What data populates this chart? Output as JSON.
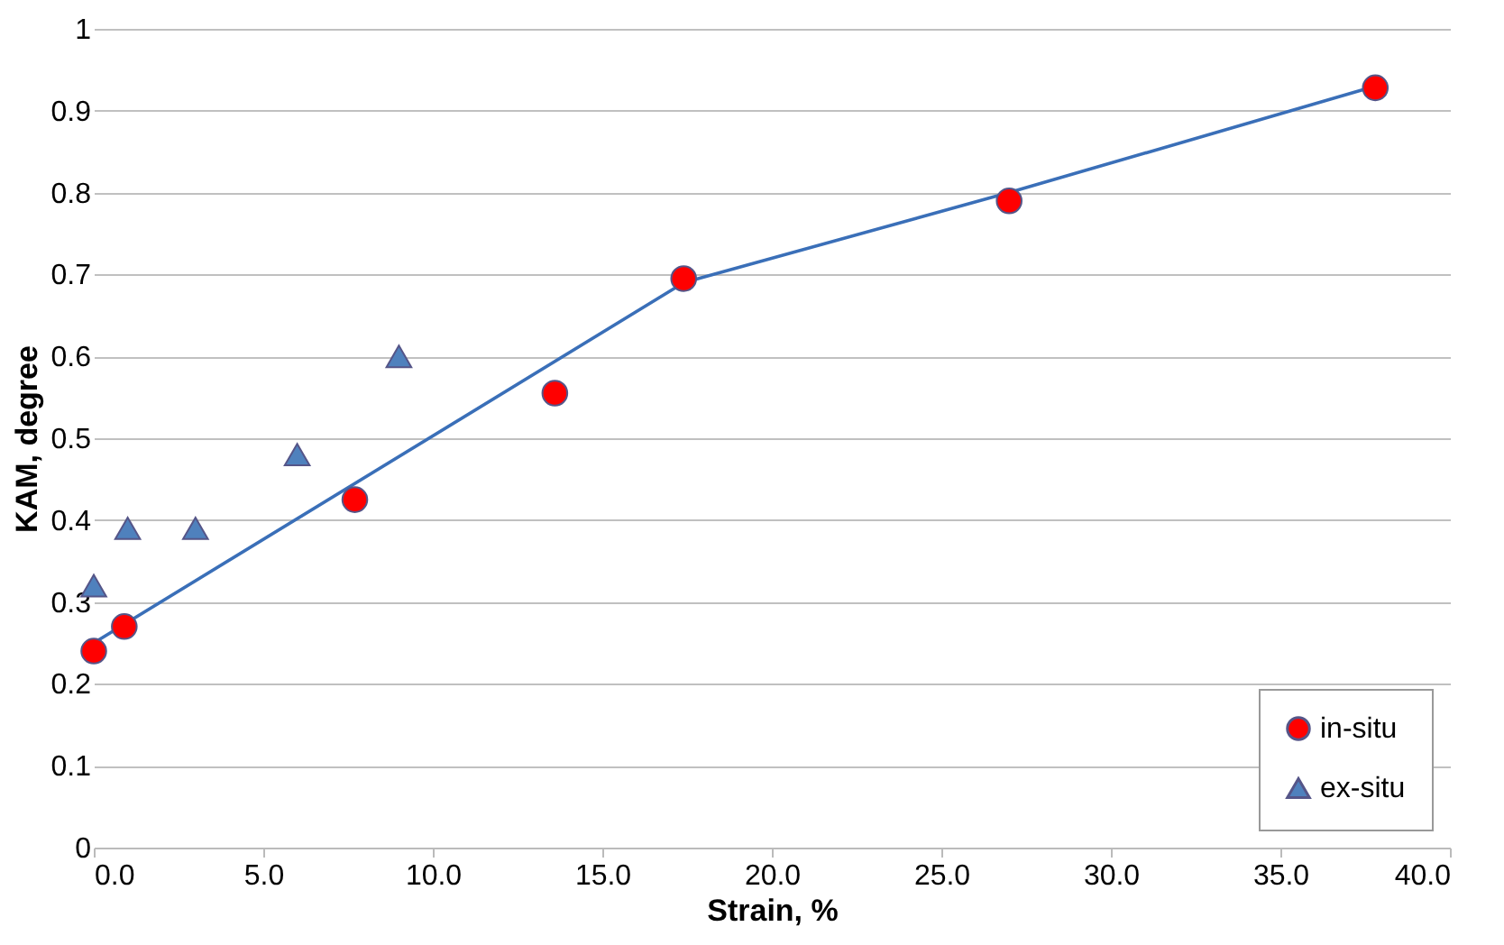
{
  "chart_data": {
    "type": "scatter",
    "xlabel": "Strain, %",
    "ylabel": "KAM, degree",
    "xlim": [
      0,
      40
    ],
    "xticks": [
      {
        "value": 0,
        "label": "0.0"
      },
      {
        "value": 5,
        "label": "5.0"
      },
      {
        "value": 10,
        "label": "10.0"
      },
      {
        "value": 15,
        "label": "15.0"
      },
      {
        "value": 20,
        "label": "20.0"
      },
      {
        "value": 25,
        "label": "25.0"
      },
      {
        "value": 30,
        "label": "30.0"
      },
      {
        "value": 35,
        "label": "35.0"
      },
      {
        "value": 40,
        "label": "40.0"
      }
    ],
    "ylim": [
      0,
      1
    ],
    "yticks": [
      0,
      0.1,
      0.2,
      0.3,
      0.4,
      0.5,
      0.6,
      0.7,
      0.8,
      0.9,
      1
    ],
    "grid": "y",
    "legend": "bottom right",
    "series": [
      {
        "type": "line",
        "color": "#3a6fb8",
        "x": [
          0,
          17.4,
          27,
          37.8
        ],
        "values": [
          0.25,
          0.69,
          0.8,
          0.93
        ],
        "marker": "none"
      },
      {
        "name": "in-situ",
        "marker": "circle",
        "color": "#ff0000",
        "x": [
          0,
          0.9,
          7.7,
          13.6,
          17.4,
          27,
          37.8
        ],
        "values": [
          0.24,
          0.27,
          0.425,
          0.555,
          0.695,
          0.79,
          0.928
        ]
      },
      {
        "name": "ex-situ",
        "marker": "triangle",
        "color": "#4f81bd",
        "x": [
          0,
          1,
          3,
          6,
          9
        ],
        "values": [
          0.32,
          0.39,
          0.39,
          0.48,
          0.6
        ]
      }
    ]
  }
}
